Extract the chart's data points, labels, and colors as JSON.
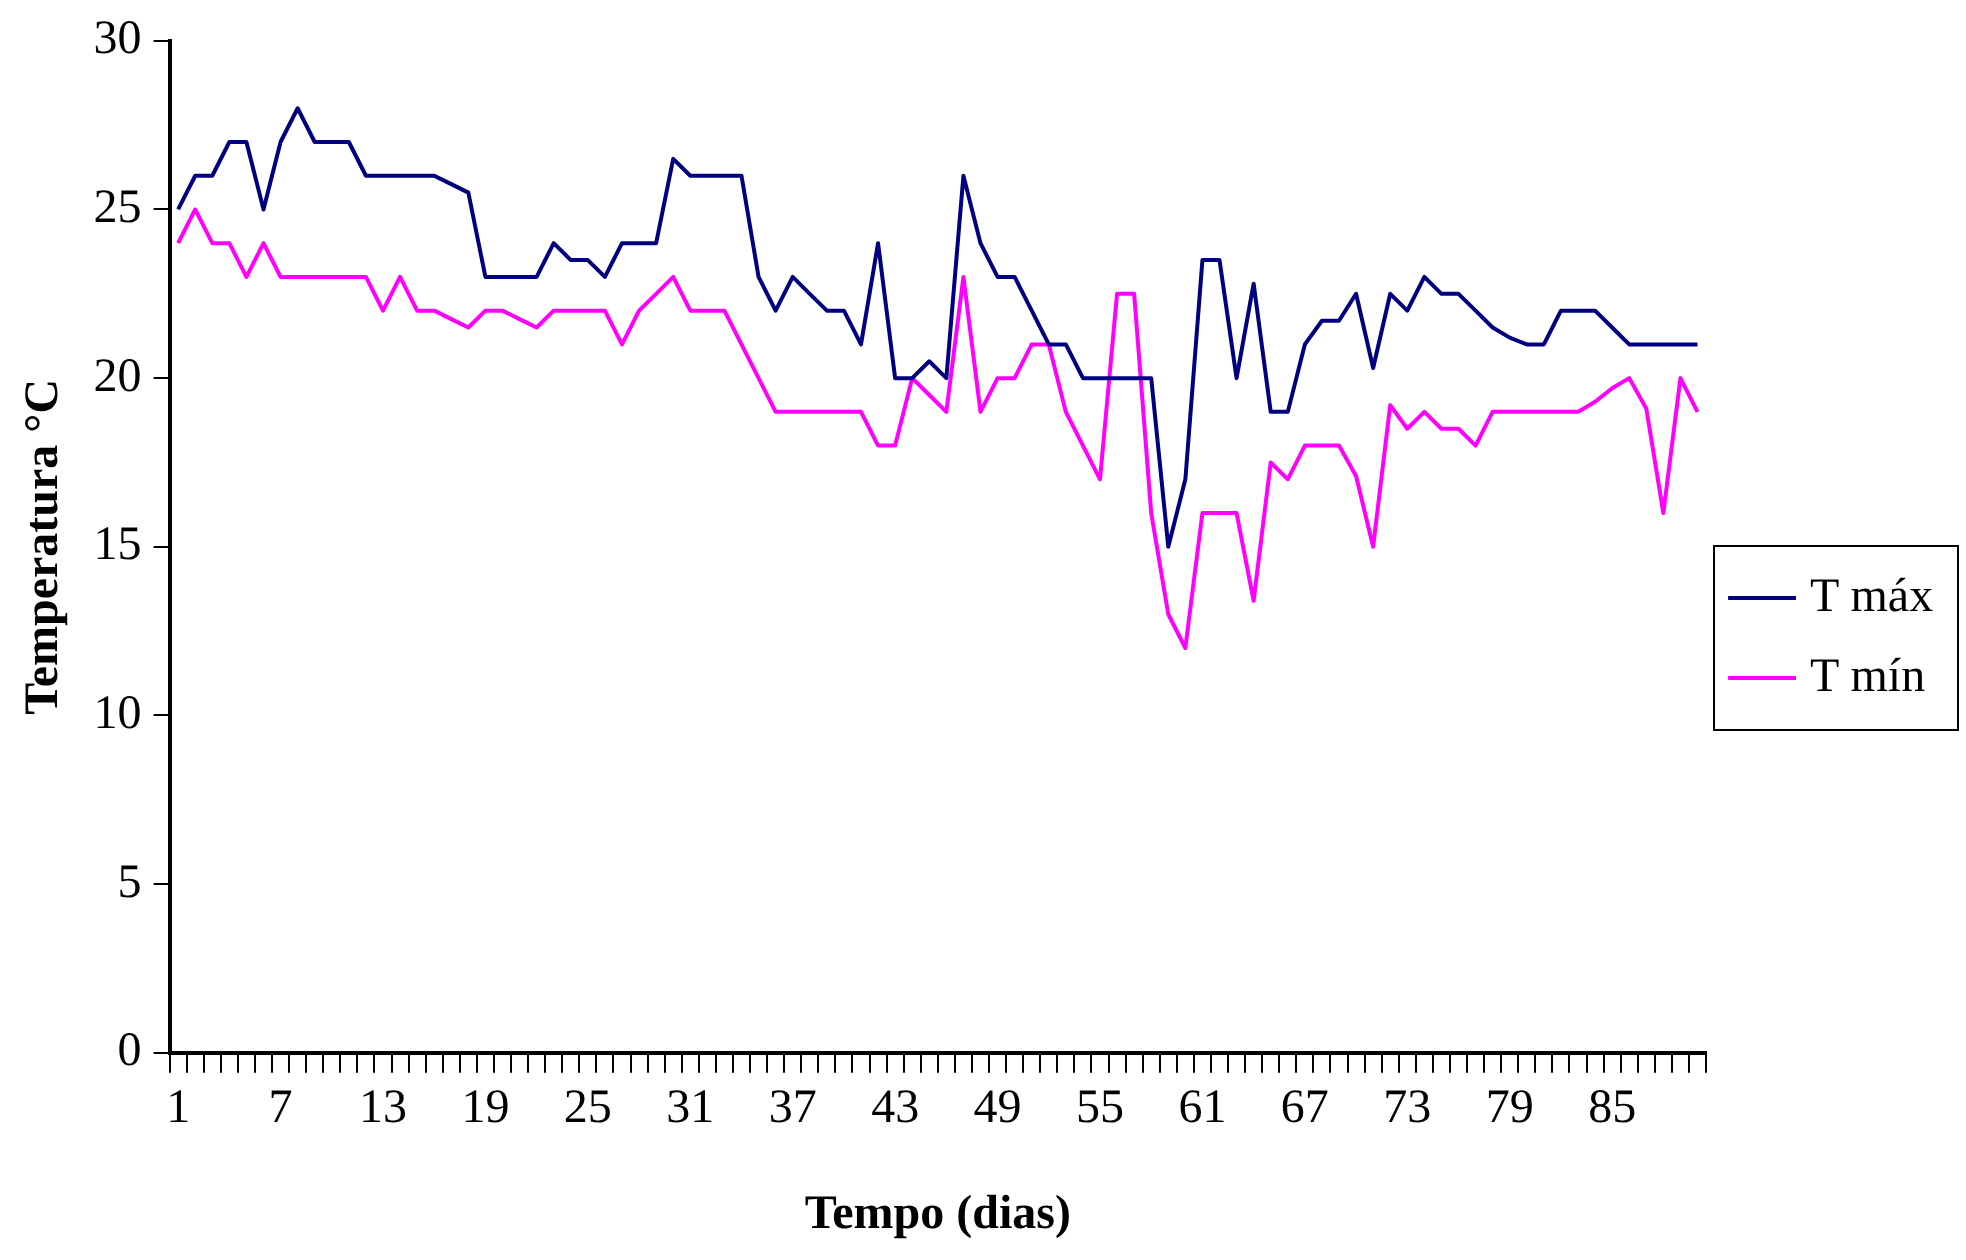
{
  "chart_data": {
    "type": "line",
    "xlabel": "Tempo (dias)",
    "ylabel": "Temperatura °C",
    "categories": [
      "1",
      null,
      null,
      null,
      null,
      null,
      "7",
      null,
      null,
      null,
      null,
      null,
      "13",
      null,
      null,
      null,
      null,
      null,
      "19",
      null,
      null,
      null,
      null,
      null,
      "25",
      null,
      null,
      null,
      null,
      null,
      "31",
      null,
      null,
      null,
      null,
      null,
      "37",
      null,
      null,
      null,
      null,
      null,
      "43",
      null,
      null,
      null,
      null,
      null,
      "49",
      null,
      null,
      null,
      null,
      null,
      "55",
      null,
      null,
      null,
      null,
      null,
      "61",
      null,
      null,
      null,
      null,
      null,
      "67",
      null,
      null,
      null,
      null,
      null,
      "73",
      null,
      null,
      null,
      null,
      null,
      "79",
      null,
      null,
      null,
      null,
      null,
      "85",
      null,
      null,
      null,
      null,
      null
    ],
    "series": [
      {
        "name": "T máx",
        "color": "#000080",
        "values": [
          25,
          26,
          26,
          27,
          27,
          25,
          27,
          28,
          27,
          27,
          27,
          26,
          26,
          26,
          26,
          26,
          25.75,
          25.5,
          23,
          23,
          23,
          23,
          24,
          23.5,
          23.5,
          23,
          24,
          24,
          24,
          26.5,
          26,
          26,
          26,
          26,
          23,
          22,
          23,
          22.5,
          22,
          22,
          21,
          24,
          20,
          20,
          20.5,
          20,
          26,
          24,
          23,
          23,
          22,
          21,
          21,
          20,
          20,
          20,
          20,
          20,
          15,
          17,
          23.5,
          23.5,
          20,
          22.8,
          19,
          19,
          21,
          21.7,
          21.7,
          22.5,
          20.3,
          22.5,
          22,
          23,
          22.5,
          22.5,
          22,
          21.5,
          21.2,
          21,
          21,
          22,
          22,
          22,
          21.5,
          21,
          21,
          21,
          21,
          21
        ]
      },
      {
        "name": "T mín",
        "color": "#ff00ff",
        "values": [
          24,
          25,
          24,
          24,
          23,
          24,
          23,
          23,
          23,
          23,
          23,
          23,
          22,
          23,
          22,
          22,
          21.75,
          21.5,
          22,
          22,
          21.75,
          21.5,
          22,
          22,
          22,
          22,
          21,
          22,
          22.5,
          23,
          22,
          22,
          22,
          21,
          20,
          19,
          19,
          19,
          19,
          19,
          19,
          18,
          18,
          20,
          19.5,
          19,
          23,
          19,
          20,
          20,
          21,
          21,
          19,
          18,
          17,
          22.5,
          22.5,
          16,
          13,
          12,
          16,
          16,
          16,
          13.4,
          17.5,
          17,
          18,
          18,
          18,
          17.1,
          15,
          19.2,
          18.5,
          19,
          18.5,
          18.5,
          18,
          19,
          19,
          19,
          19,
          19,
          19,
          19.3,
          19.7,
          20,
          19.1,
          16,
          20,
          19
        ]
      }
    ],
    "ylim": [
      0,
      30
    ],
    "yticks": [
      0,
      5,
      10,
      15,
      20,
      25,
      30
    ],
    "grid": false,
    "legend": "right",
    "marker": "none",
    "line_style": "solid"
  }
}
